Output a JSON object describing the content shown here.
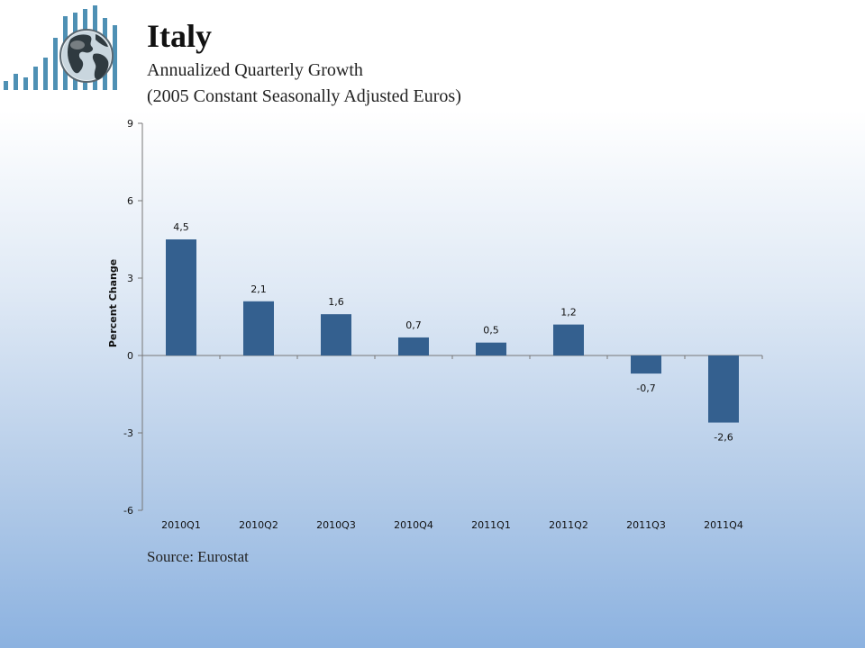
{
  "header": {
    "title": "Italy",
    "subtitle_line1": "Annualized Quarterly Growth",
    "subtitle_line2": "(2005 Constant Seasonally Adjusted Euros)"
  },
  "footer": {
    "source": "Source: Eurostat"
  },
  "logo": {
    "icon": "globe-bar-chart-icon",
    "bar_color": "#4e90b4"
  },
  "chart_data": {
    "type": "bar",
    "categories": [
      "2010Q1",
      "2010Q2",
      "2010Q3",
      "2010Q4",
      "2011Q1",
      "2011Q2",
      "2011Q3",
      "2011Q4"
    ],
    "values": [
      4.5,
      2.1,
      1.6,
      0.7,
      0.5,
      1.2,
      -0.7,
      -2.6
    ],
    "value_labels": [
      "4,5",
      "2,1",
      "1,6",
      "0,7",
      "0,5",
      "1,2",
      "-0,7",
      "-2,6"
    ],
    "title": "",
    "xlabel": "",
    "ylabel": "Percent Change",
    "ylim": [
      -6,
      9
    ],
    "yticks": [
      -6,
      -3,
      0,
      3,
      6,
      9
    ],
    "grid": false,
    "bar_color": "#34608f"
  }
}
